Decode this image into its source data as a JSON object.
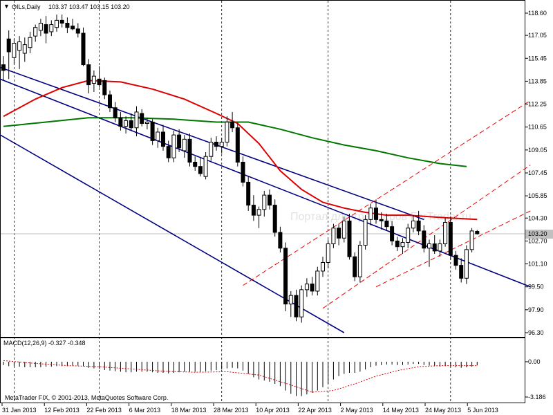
{
  "window": {
    "symbol_label": "OILs,Daily",
    "ohlc_header": "103.37 103.47 103.15 103.20",
    "collapse_glyph": "▼",
    "copyright": "MetaTrader FIX, © 2001-2013, MetaQuotes Software Corp.",
    "watermark": "Портал для трейдеров ForTrader.ru"
  },
  "macd": {
    "label": "MACD(12,26,9) -0.327 -0.348",
    "axis_labels": [
      "0.00",
      "-3.186"
    ],
    "zero_value": 0.0,
    "min_value": -3.186
  },
  "price_axis": {
    "ticks": [
      "118.60",
      "117.05",
      "115.45",
      "113.85",
      "112.25",
      "110.65",
      "109.05",
      "107.45",
      "105.85",
      "104.30",
      "102.70",
      "101.10",
      "99.50",
      "97.90",
      "96.30"
    ],
    "current_price_label": "103.20",
    "current_price": 103.2,
    "range": [
      96.3,
      118.6
    ]
  },
  "time_axis": {
    "labels": [
      "31 Jan 2013",
      "12 Feb 2013",
      "22 Feb 2013",
      "6 Mar 2013",
      "18 Mar 2013",
      "28 Mar 2013",
      "10 Apr 2013",
      "22 Apr 2013",
      "2 May 2013",
      "14 May 2013",
      "24 May 2013",
      "5 Jun 2013"
    ]
  },
  "colors": {
    "background": "#ffffff",
    "axis": "#000000",
    "ma_fast": "#dd0000",
    "ma_slow": "#007700",
    "channel": "#000080",
    "channel_dashed": "#ee0000",
    "macd_hist": "#000000",
    "macd_signal": "#dd0000",
    "current_price_line": "#c0c0c0"
  },
  "chart_data": {
    "type": "candlestick",
    "symbol": "OILs",
    "timeframe": "Daily",
    "ylim": [
      96.3,
      118.6
    ],
    "candles": [
      {
        "o": 115.0,
        "h": 115.6,
        "l": 113.9,
        "c": 114.6
      },
      {
        "o": 116.8,
        "h": 117.4,
        "l": 114.0,
        "c": 115.9
      },
      {
        "o": 115.5,
        "h": 116.8,
        "l": 115.0,
        "c": 116.5
      },
      {
        "o": 116.0,
        "h": 117.0,
        "l": 114.7,
        "c": 116.6
      },
      {
        "o": 115.8,
        "h": 116.9,
        "l": 115.2,
        "c": 116.4
      },
      {
        "o": 116.2,
        "h": 117.3,
        "l": 115.8,
        "c": 116.9
      },
      {
        "o": 117.0,
        "h": 117.8,
        "l": 116.6,
        "c": 117.6
      },
      {
        "o": 117.4,
        "h": 118.2,
        "l": 117.0,
        "c": 117.9
      },
      {
        "o": 117.8,
        "h": 118.4,
        "l": 116.5,
        "c": 117.2
      },
      {
        "o": 117.3,
        "h": 118.1,
        "l": 117.0,
        "c": 117.8
      },
      {
        "o": 117.6,
        "h": 118.5,
        "l": 117.3,
        "c": 118.1
      },
      {
        "o": 118.1,
        "h": 118.5,
        "l": 117.6,
        "c": 117.9
      },
      {
        "o": 117.9,
        "h": 118.3,
        "l": 117.2,
        "c": 117.6
      },
      {
        "o": 117.7,
        "h": 118.2,
        "l": 117.4,
        "c": 117.5
      },
      {
        "o": 117.5,
        "h": 117.9,
        "l": 116.9,
        "c": 117.2
      },
      {
        "o": 117.2,
        "h": 117.6,
        "l": 114.9,
        "c": 115.0
      },
      {
        "o": 115.0,
        "h": 115.4,
        "l": 113.0,
        "c": 113.6
      },
      {
        "o": 113.7,
        "h": 114.6,
        "l": 113.1,
        "c": 114.2
      },
      {
        "o": 114.0,
        "h": 114.9,
        "l": 113.4,
        "c": 113.6
      },
      {
        "o": 113.9,
        "h": 114.1,
        "l": 112.6,
        "c": 112.9
      },
      {
        "o": 112.9,
        "h": 113.2,
        "l": 111.7,
        "c": 112.0
      },
      {
        "o": 112.0,
        "h": 112.4,
        "l": 111.0,
        "c": 111.3
      },
      {
        "o": 111.3,
        "h": 111.7,
        "l": 110.4,
        "c": 110.7
      },
      {
        "o": 110.7,
        "h": 111.4,
        "l": 110.2,
        "c": 111.1
      },
      {
        "o": 111.1,
        "h": 111.6,
        "l": 110.4,
        "c": 110.6
      },
      {
        "o": 110.6,
        "h": 112.1,
        "l": 110.0,
        "c": 111.7
      },
      {
        "o": 111.6,
        "h": 111.9,
        "l": 110.7,
        "c": 110.9
      },
      {
        "o": 110.9,
        "h": 111.3,
        "l": 110.5,
        "c": 111.0
      },
      {
        "o": 111.0,
        "h": 111.2,
        "l": 109.4,
        "c": 109.7
      },
      {
        "o": 109.7,
        "h": 110.6,
        "l": 109.2,
        "c": 110.3
      },
      {
        "o": 110.3,
        "h": 110.8,
        "l": 109.0,
        "c": 109.3
      },
      {
        "o": 109.3,
        "h": 109.7,
        "l": 108.2,
        "c": 108.5
      },
      {
        "o": 108.5,
        "h": 110.4,
        "l": 108.2,
        "c": 110.1
      },
      {
        "o": 110.1,
        "h": 110.5,
        "l": 108.9,
        "c": 109.2
      },
      {
        "o": 109.0,
        "h": 110.1,
        "l": 108.5,
        "c": 109.8
      },
      {
        "o": 109.8,
        "h": 110.2,
        "l": 107.9,
        "c": 108.2
      },
      {
        "o": 108.2,
        "h": 108.6,
        "l": 107.6,
        "c": 107.9
      },
      {
        "o": 107.9,
        "h": 108.5,
        "l": 107.2,
        "c": 107.4
      },
      {
        "o": 107.2,
        "h": 108.9,
        "l": 107.0,
        "c": 108.6
      },
      {
        "o": 108.6,
        "h": 109.9,
        "l": 108.3,
        "c": 109.6
      },
      {
        "o": 109.6,
        "h": 110.0,
        "l": 109.0,
        "c": 109.3
      },
      {
        "o": 109.3,
        "h": 109.9,
        "l": 108.8,
        "c": 109.6
      },
      {
        "o": 109.6,
        "h": 111.4,
        "l": 109.3,
        "c": 111.0
      },
      {
        "o": 111.0,
        "h": 111.7,
        "l": 110.3,
        "c": 110.6
      },
      {
        "o": 110.6,
        "h": 110.9,
        "l": 107.9,
        "c": 108.2
      },
      {
        "o": 108.2,
        "h": 108.6,
        "l": 106.5,
        "c": 106.8
      },
      {
        "o": 106.8,
        "h": 107.2,
        "l": 104.8,
        "c": 105.2
      },
      {
        "o": 105.2,
        "h": 105.9,
        "l": 104.1,
        "c": 104.5
      },
      {
        "o": 104.5,
        "h": 105.1,
        "l": 103.6,
        "c": 104.9
      },
      {
        "o": 104.9,
        "h": 106.2,
        "l": 104.4,
        "c": 105.9
      },
      {
        "o": 105.9,
        "h": 106.3,
        "l": 104.9,
        "c": 105.2
      },
      {
        "o": 105.2,
        "h": 105.6,
        "l": 103.0,
        "c": 103.3
      },
      {
        "o": 103.3,
        "h": 103.7,
        "l": 101.9,
        "c": 102.2
      },
      {
        "o": 102.2,
        "h": 102.6,
        "l": 97.8,
        "c": 98.3
      },
      {
        "o": 98.3,
        "h": 99.2,
        "l": 97.4,
        "c": 98.9
      },
      {
        "o": 98.9,
        "h": 99.3,
        "l": 97.1,
        "c": 97.4
      },
      {
        "o": 97.4,
        "h": 99.6,
        "l": 97.0,
        "c": 99.3
      },
      {
        "o": 99.3,
        "h": 100.1,
        "l": 98.8,
        "c": 99.7
      },
      {
        "o": 99.7,
        "h": 100.2,
        "l": 98.9,
        "c": 99.2
      },
      {
        "o": 99.2,
        "h": 100.9,
        "l": 98.9,
        "c": 100.6
      },
      {
        "o": 100.6,
        "h": 101.6,
        "l": 100.2,
        "c": 101.2
      },
      {
        "o": 101.2,
        "h": 102.8,
        "l": 100.8,
        "c": 102.5
      },
      {
        "o": 102.5,
        "h": 103.9,
        "l": 102.2,
        "c": 103.6
      },
      {
        "o": 103.6,
        "h": 103.9,
        "l": 102.4,
        "c": 102.9
      },
      {
        "o": 102.9,
        "h": 104.4,
        "l": 102.6,
        "c": 104.1
      },
      {
        "o": 104.1,
        "h": 104.6,
        "l": 101.4,
        "c": 101.6
      },
      {
        "o": 101.6,
        "h": 101.9,
        "l": 99.9,
        "c": 100.2
      },
      {
        "o": 100.2,
        "h": 102.7,
        "l": 99.8,
        "c": 102.4
      },
      {
        "o": 102.4,
        "h": 104.5,
        "l": 102.1,
        "c": 104.2
      },
      {
        "o": 104.2,
        "h": 105.3,
        "l": 103.8,
        "c": 105.0
      },
      {
        "o": 105.0,
        "h": 105.6,
        "l": 103.9,
        "c": 104.2
      },
      {
        "o": 104.2,
        "h": 104.7,
        "l": 103.5,
        "c": 104.1
      },
      {
        "o": 104.1,
        "h": 104.6,
        "l": 103.4,
        "c": 103.7
      },
      {
        "o": 103.7,
        "h": 104.1,
        "l": 102.4,
        "c": 102.7
      },
      {
        "o": 102.7,
        "h": 103.0,
        "l": 102.0,
        "c": 102.3
      },
      {
        "o": 102.3,
        "h": 102.9,
        "l": 101.8,
        "c": 102.6
      },
      {
        "o": 102.6,
        "h": 103.9,
        "l": 102.2,
        "c": 103.6
      },
      {
        "o": 103.6,
        "h": 104.5,
        "l": 103.3,
        "c": 104.1
      },
      {
        "o": 104.1,
        "h": 104.8,
        "l": 103.1,
        "c": 103.4
      },
      {
        "o": 103.4,
        "h": 103.8,
        "l": 101.9,
        "c": 102.2
      },
      {
        "o": 102.2,
        "h": 102.8,
        "l": 100.9,
        "c": 102.5
      },
      {
        "o": 102.5,
        "h": 103.1,
        "l": 101.8,
        "c": 102.0
      },
      {
        "o": 102.0,
        "h": 102.8,
        "l": 101.6,
        "c": 102.5
      },
      {
        "o": 102.5,
        "h": 104.3,
        "l": 102.3,
        "c": 104.0
      },
      {
        "o": 104.0,
        "h": 104.4,
        "l": 101.4,
        "c": 101.7
      },
      {
        "o": 101.7,
        "h": 102.0,
        "l": 100.7,
        "c": 101.0
      },
      {
        "o": 101.0,
        "h": 101.5,
        "l": 99.8,
        "c": 100.1
      },
      {
        "o": 100.1,
        "h": 102.4,
        "l": 99.7,
        "c": 102.1
      },
      {
        "o": 102.1,
        "h": 103.6,
        "l": 101.9,
        "c": 103.4
      },
      {
        "o": 103.37,
        "h": 103.47,
        "l": 103.15,
        "c": 103.2
      }
    ],
    "ma_fast_red": [
      [
        0,
        111.4
      ],
      [
        6,
        112.6
      ],
      [
        11,
        113.4
      ],
      [
        16,
        113.9
      ],
      [
        22,
        113.8
      ],
      [
        28,
        113.3
      ],
      [
        34,
        112.6
      ],
      [
        40,
        111.6
      ],
      [
        44,
        110.9
      ],
      [
        48,
        109.5
      ],
      [
        52,
        107.6
      ],
      [
        56,
        106.3
      ],
      [
        60,
        105.4
      ],
      [
        64,
        105.0
      ],
      [
        68,
        104.7
      ],
      [
        72,
        104.5
      ],
      [
        76,
        104.5
      ],
      [
        80,
        104.4
      ],
      [
        84,
        104.3
      ],
      [
        89,
        104.2
      ]
    ],
    "ma_slow_green": [
      [
        0,
        110.7
      ],
      [
        8,
        111.0
      ],
      [
        16,
        111.3
      ],
      [
        24,
        111.3
      ],
      [
        32,
        111.2
      ],
      [
        40,
        111.0
      ],
      [
        46,
        111.0
      ],
      [
        52,
        110.5
      ],
      [
        58,
        109.9
      ],
      [
        64,
        109.4
      ],
      [
        70,
        109.0
      ],
      [
        76,
        108.5
      ],
      [
        82,
        108.1
      ],
      [
        87,
        107.9
      ]
    ],
    "channels_solid": [
      {
        "from": [
          -2,
          115.0
        ],
        "to": [
          79,
          104.2
        ]
      },
      {
        "from": [
          -2,
          114.2
        ],
        "to": [
          99,
          99.5
        ]
      },
      {
        "from": [
          -2,
          110.4
        ],
        "to": [
          64,
          96.3
        ]
      }
    ],
    "channels_dashed_red": [
      {
        "from": [
          45,
          99.6
        ],
        "to": [
          99,
          112.5
        ]
      },
      {
        "from": [
          60,
          98.0
        ],
        "to": [
          99,
          108.0
        ]
      },
      {
        "from": [
          70,
          99.5
        ],
        "to": [
          99,
          104.8
        ]
      }
    ],
    "vertical_separators": [
      2,
      18,
      41,
      61,
      84
    ],
    "macd_histogram": [
      -0.3,
      -0.4,
      -0.4,
      -0.45,
      -0.5,
      -0.5,
      -0.5,
      -0.5,
      -0.45,
      -0.45,
      -0.4,
      -0.4,
      -0.4,
      -0.35,
      -0.35,
      -0.4,
      -0.55,
      -0.6,
      -0.65,
      -0.75,
      -0.8,
      -0.85,
      -0.9,
      -0.95,
      -0.95,
      -0.9,
      -0.9,
      -0.9,
      -0.95,
      -1.0,
      -1.0,
      -1.05,
      -1.0,
      -0.95,
      -0.9,
      -0.9,
      -0.9,
      -0.9,
      -0.85,
      -0.8,
      -0.75,
      -0.7,
      -0.6,
      -0.55,
      -0.6,
      -0.8,
      -1.1,
      -1.4,
      -1.6,
      -1.7,
      -1.8,
      -2.0,
      -2.2,
      -2.6,
      -2.9,
      -3.1,
      -3.1,
      -2.95,
      -2.8,
      -2.6,
      -2.3,
      -2.0,
      -1.6,
      -1.3,
      -1.1,
      -1.0,
      -1.0,
      -0.9,
      -0.7,
      -0.5,
      -0.35,
      -0.3,
      -0.25,
      -0.25,
      -0.3,
      -0.3,
      -0.25,
      -0.2,
      -0.2,
      -0.3,
      -0.35,
      -0.4,
      -0.45,
      -0.4,
      -0.4,
      -0.5,
      -0.55,
      -0.5,
      -0.45,
      -0.33
    ],
    "macd_signal": [
      [
        0,
        0.1
      ],
      [
        6,
        -0.15
      ],
      [
        12,
        -0.35
      ],
      [
        18,
        -0.45
      ],
      [
        24,
        -0.65
      ],
      [
        30,
        -0.85
      ],
      [
        36,
        -0.95
      ],
      [
        42,
        -0.9
      ],
      [
        48,
        -1.2
      ],
      [
        54,
        -2.1
      ],
      [
        58,
        -2.75
      ],
      [
        62,
        -2.6
      ],
      [
        66,
        -2.0
      ],
      [
        70,
        -1.3
      ],
      [
        74,
        -0.8
      ],
      [
        78,
        -0.45
      ],
      [
        82,
        -0.35
      ],
      [
        86,
        -0.35
      ],
      [
        89,
        -0.35
      ]
    ]
  }
}
